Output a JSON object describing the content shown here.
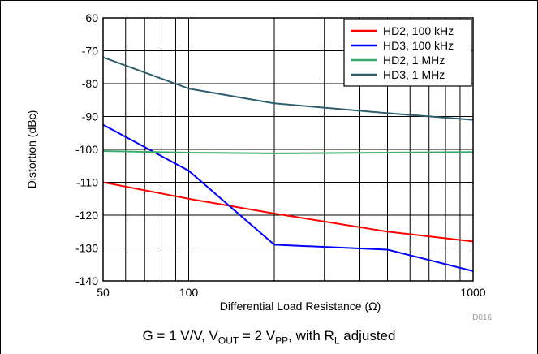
{
  "chart_data": {
    "type": "line",
    "title": "",
    "xlabel": "Differential Load Resistance (Ω)",
    "ylabel": "Distortion (dBc)",
    "xscale": "log",
    "xlim": [
      50,
      1000
    ],
    "ylim": [
      -140,
      -60
    ],
    "x_ticks": [
      50,
      100,
      1000
    ],
    "y_ticks": [
      -60,
      -70,
      -80,
      -90,
      -100,
      -110,
      -120,
      -130,
      -140
    ],
    "grid": true,
    "legend_position": "top-right",
    "figure_code": "D016",
    "series": [
      {
        "name": "HD2, 100 kHz",
        "color": "#ff0000",
        "x": [
          50,
          100,
          200,
          500,
          1000
        ],
        "y": [
          -110,
          -115,
          -119.5,
          -125,
          -128
        ]
      },
      {
        "name": "HD3, 100 kHz",
        "color": "#0000ff",
        "x": [
          50,
          100,
          200,
          500,
          1000
        ],
        "y": [
          -92.5,
          -106.5,
          -129,
          -130.5,
          -137
        ]
      },
      {
        "name": "HD2, 1 MHz",
        "color": "#3aaa6e",
        "x": [
          50,
          100,
          200,
          500,
          1000
        ],
        "y": [
          -100.5,
          -101,
          -101.2,
          -101,
          -100.8
        ]
      },
      {
        "name": "HD3, 1 MHz",
        "color": "#2e5e6e",
        "x": [
          50,
          100,
          200,
          500,
          1000
        ],
        "y": [
          -72,
          -81.5,
          -86,
          -89,
          -91
        ]
      }
    ]
  },
  "caption": {
    "g_part": "G = 1 V/V, V",
    "vout_sub": "OUT",
    "vout_part": " = 2 V",
    "vpp_sub": "PP",
    "rl_part": ", with R",
    "rl_sub": "L",
    "end_part": " adjusted"
  }
}
